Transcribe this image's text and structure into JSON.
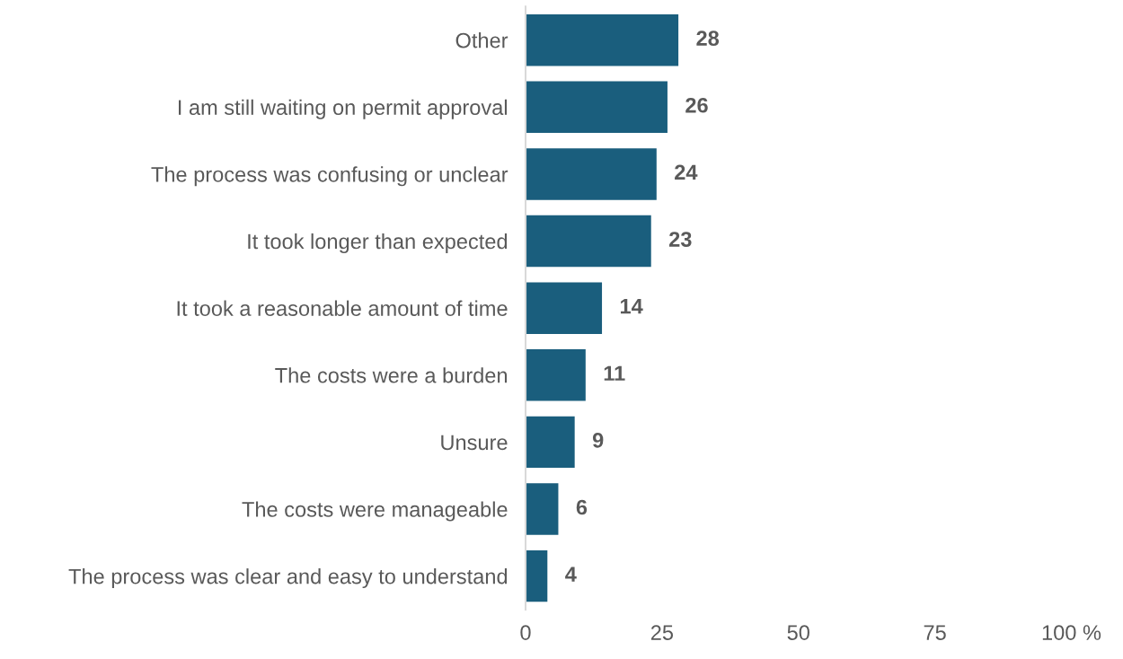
{
  "chart_data": {
    "type": "bar",
    "orientation": "horizontal",
    "categories": [
      "Other",
      "I am still waiting on permit approval",
      "The process was confusing or unclear",
      "It took longer than expected",
      "It took a reasonable amount of time",
      "The costs were a burden",
      "Unsure",
      "The costs were manageable",
      "The process was clear and easy to understand"
    ],
    "values": [
      28,
      26,
      24,
      23,
      14,
      11,
      9,
      6,
      4
    ],
    "color": "#1a5e7d",
    "xlim": [
      0,
      100
    ],
    "xticks": [
      0,
      25,
      50,
      75,
      {
        "value": 100,
        "label": "100 %"
      }
    ],
    "data_labels": true,
    "grid": false
  }
}
